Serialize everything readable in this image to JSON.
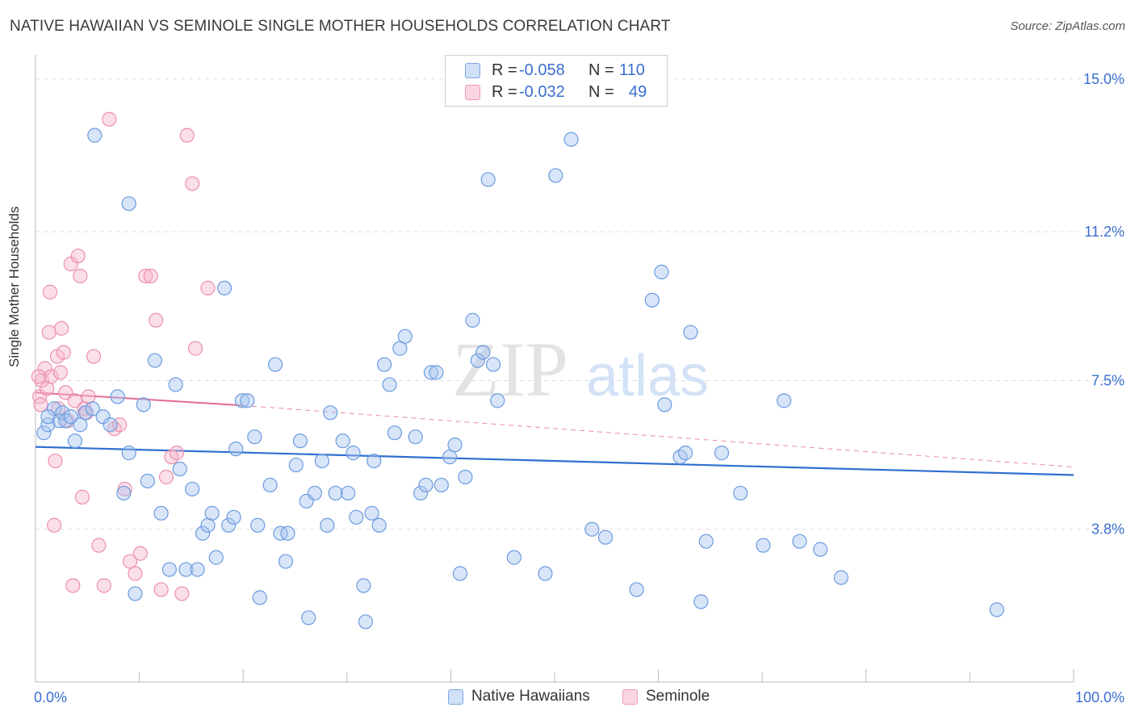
{
  "title": "NATIVE HAWAIIAN VS SEMINOLE SINGLE MOTHER HOUSEHOLDS CORRELATION CHART",
  "source": "Source: ZipAtlas.com",
  "watermark": {
    "zip": "ZIP",
    "atlas": "atlas"
  },
  "legend_top": {
    "rows": [
      {
        "r_label": "R =",
        "r_value": "-0.058",
        "n_label": "N =",
        "n_value": "110",
        "color": "#a9c6ef"
      },
      {
        "r_label": "R =",
        "r_value": "-0.032",
        "n_label": "N =",
        "n_value": "49",
        "color": "#f6b8cb"
      }
    ]
  },
  "legend_bottom": [
    {
      "label": "Native Hawaiians",
      "color": "#a9c6ef"
    },
    {
      "label": "Seminole",
      "color": "#f6b8cb"
    }
  ],
  "chart_data": {
    "type": "scatter",
    "title": "NATIVE HAWAIIAN VS SEMINOLE SINGLE MOTHER HOUSEHOLDS CORRELATION CHART",
    "xlabel": "",
    "ylabel": "Single Mother Households",
    "xlim": [
      0,
      100
    ],
    "ylim": [
      0,
      15.4
    ],
    "x_tick_labels": [
      "0.0%",
      "100.0%"
    ],
    "y_ticks": [
      3.8,
      7.5,
      11.2,
      15.0
    ],
    "y_tick_labels": [
      "3.8%",
      "7.5%",
      "11.2%",
      "15.0%"
    ],
    "grid": true,
    "series": [
      {
        "name": "Native Hawaiians",
        "color": "#a9c6ef",
        "stroke": "#6b9be0",
        "trend": {
          "x": [
            0,
            100
          ],
          "y": [
            5.85,
            5.15
          ],
          "color": "#2f6fd0"
        },
        "points": [
          [
            0.8,
            6.2
          ],
          [
            1.2,
            6.4
          ],
          [
            1.8,
            6.8
          ],
          [
            2.3,
            6.5
          ],
          [
            2.6,
            6.7
          ],
          [
            2.9,
            6.5
          ],
          [
            3.4,
            6.6
          ],
          [
            3.8,
            6.0
          ],
          [
            4.3,
            6.4
          ],
          [
            4.8,
            6.7
          ],
          [
            5.5,
            6.8
          ],
          [
            6.5,
            6.6
          ],
          [
            7.2,
            6.4
          ],
          [
            7.9,
            7.1
          ],
          [
            8.5,
            4.7
          ],
          [
            9.0,
            5.7
          ],
          [
            9.6,
            2.2
          ],
          [
            10.4,
            6.9
          ],
          [
            10.8,
            5.0
          ],
          [
            11.5,
            8.0
          ],
          [
            12.1,
            4.2
          ],
          [
            12.9,
            2.8
          ],
          [
            13.5,
            7.4
          ],
          [
            13.9,
            5.3
          ],
          [
            14.5,
            2.8
          ],
          [
            15.1,
            4.8
          ],
          [
            15.6,
            2.8
          ],
          [
            16.1,
            3.7
          ],
          [
            16.6,
            3.9
          ],
          [
            17.0,
            4.2
          ],
          [
            17.4,
            3.1
          ],
          [
            18.2,
            9.8
          ],
          [
            18.6,
            3.9
          ],
          [
            19.1,
            4.1
          ],
          [
            19.3,
            5.8
          ],
          [
            19.9,
            7.0
          ],
          [
            20.4,
            7.0
          ],
          [
            21.1,
            6.1
          ],
          [
            21.4,
            3.9
          ],
          [
            21.6,
            2.1
          ],
          [
            22.6,
            4.9
          ],
          [
            23.1,
            7.9
          ],
          [
            23.6,
            3.7
          ],
          [
            24.1,
            3.0
          ],
          [
            24.3,
            3.7
          ],
          [
            25.1,
            5.4
          ],
          [
            25.5,
            6.0
          ],
          [
            26.1,
            4.5
          ],
          [
            26.3,
            1.6
          ],
          [
            26.9,
            4.7
          ],
          [
            27.6,
            5.5
          ],
          [
            28.1,
            3.9
          ],
          [
            28.4,
            6.7
          ],
          [
            28.9,
            4.7
          ],
          [
            29.6,
            6.0
          ],
          [
            30.1,
            4.7
          ],
          [
            30.6,
            5.7
          ],
          [
            30.9,
            4.1
          ],
          [
            31.6,
            2.4
          ],
          [
            31.8,
            1.5
          ],
          [
            32.4,
            4.2
          ],
          [
            32.6,
            5.5
          ],
          [
            33.1,
            3.9
          ],
          [
            33.6,
            7.9
          ],
          [
            34.1,
            7.4
          ],
          [
            34.6,
            6.2
          ],
          [
            35.1,
            8.3
          ],
          [
            35.6,
            8.6
          ],
          [
            36.6,
            6.1
          ],
          [
            37.1,
            4.7
          ],
          [
            37.6,
            4.9
          ],
          [
            38.1,
            7.7
          ],
          [
            38.6,
            7.7
          ],
          [
            39.1,
            4.9
          ],
          [
            39.9,
            5.6
          ],
          [
            40.4,
            5.9
          ],
          [
            40.9,
            2.7
          ],
          [
            41.4,
            5.1
          ],
          [
            42.1,
            9.0
          ],
          [
            42.6,
            8.0
          ],
          [
            43.1,
            8.2
          ],
          [
            43.6,
            12.5
          ],
          [
            44.1,
            7.9
          ],
          [
            44.5,
            7.0
          ],
          [
            46.1,
            3.1
          ],
          [
            49.1,
            2.7
          ],
          [
            50.1,
            12.6
          ],
          [
            51.6,
            13.5
          ],
          [
            53.6,
            3.8
          ],
          [
            54.9,
            3.6
          ],
          [
            57.9,
            2.3
          ],
          [
            59.4,
            9.5
          ],
          [
            60.3,
            10.2
          ],
          [
            60.6,
            6.9
          ],
          [
            62.1,
            5.6
          ],
          [
            62.6,
            5.7
          ],
          [
            63.1,
            8.7
          ],
          [
            64.1,
            2.0
          ],
          [
            64.6,
            3.5
          ],
          [
            66.1,
            5.7
          ],
          [
            67.9,
            4.7
          ],
          [
            70.1,
            3.4
          ],
          [
            72.1,
            7.0
          ],
          [
            73.6,
            3.5
          ],
          [
            75.6,
            3.3
          ],
          [
            77.6,
            2.6
          ],
          [
            92.6,
            1.8
          ],
          [
            5.7,
            13.6
          ],
          [
            9.0,
            11.9
          ],
          [
            1.2,
            6.6
          ]
        ]
      },
      {
        "name": "Seminole",
        "color": "#f6b8cb",
        "stroke": "#ec8fae",
        "trend": {
          "x": [
            0,
            20
          ],
          "y": [
            7.2,
            6.88
          ],
          "dashed_to": [
            100,
            5.35
          ],
          "color": "#e46b94"
        },
        "points": [
          [
            0.4,
            7.1
          ],
          [
            0.6,
            7.5
          ],
          [
            0.9,
            7.8
          ],
          [
            1.1,
            7.3
          ],
          [
            1.3,
            8.7
          ],
          [
            1.4,
            9.7
          ],
          [
            1.5,
            7.6
          ],
          [
            1.8,
            3.9
          ],
          [
            1.9,
            5.5
          ],
          [
            2.1,
            8.1
          ],
          [
            2.2,
            6.8
          ],
          [
            2.4,
            7.7
          ],
          [
            2.5,
            8.8
          ],
          [
            2.7,
            8.2
          ],
          [
            2.9,
            7.2
          ],
          [
            3.1,
            6.5
          ],
          [
            3.4,
            10.4
          ],
          [
            3.6,
            2.4
          ],
          [
            3.8,
            7.0
          ],
          [
            4.1,
            10.6
          ],
          [
            4.3,
            10.1
          ],
          [
            4.5,
            4.6
          ],
          [
            4.7,
            6.8
          ],
          [
            4.9,
            6.7
          ],
          [
            5.1,
            7.1
          ],
          [
            5.6,
            8.1
          ],
          [
            6.1,
            3.4
          ],
          [
            6.6,
            2.4
          ],
          [
            7.1,
            14.0
          ],
          [
            7.6,
            6.3
          ],
          [
            8.1,
            6.4
          ],
          [
            8.6,
            4.8
          ],
          [
            9.1,
            3.0
          ],
          [
            9.6,
            2.7
          ],
          [
            10.1,
            3.2
          ],
          [
            10.6,
            10.1
          ],
          [
            11.1,
            10.1
          ],
          [
            11.6,
            9.0
          ],
          [
            12.1,
            2.3
          ],
          [
            12.6,
            5.1
          ],
          [
            13.1,
            5.6
          ],
          [
            13.6,
            5.7
          ],
          [
            14.1,
            2.2
          ],
          [
            14.6,
            13.6
          ],
          [
            15.1,
            12.4
          ],
          [
            15.4,
            8.3
          ],
          [
            16.6,
            9.8
          ],
          [
            0.3,
            7.6
          ],
          [
            0.5,
            6.9
          ]
        ]
      }
    ]
  },
  "axes": {
    "x_left_label": "0.0%",
    "x_right_label": "100.0%",
    "y_axis_title": "Single Mother Households"
  }
}
